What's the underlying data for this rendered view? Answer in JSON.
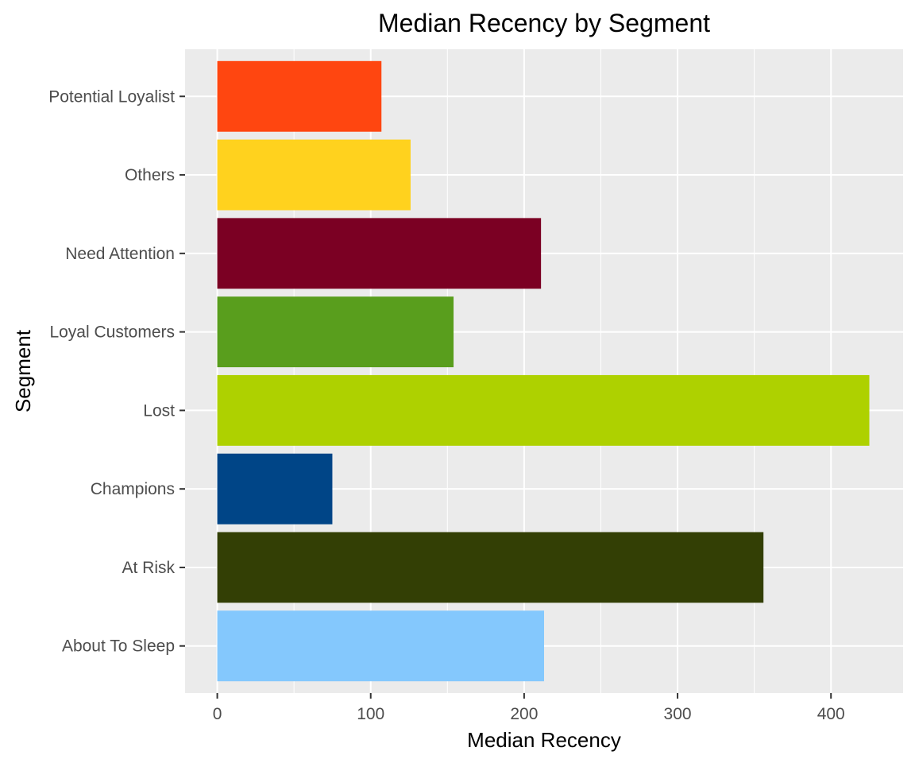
{
  "chart_data": {
    "type": "bar",
    "orientation": "horizontal",
    "title": "Median Recency by Segment",
    "xlabel": "Median Recency",
    "ylabel": "Segment",
    "xlim": [
      -21,
      447
    ],
    "x_ticks": [
      0,
      100,
      200,
      300,
      400
    ],
    "grid": true,
    "legend": "none",
    "categories": [
      "About To Sleep",
      "At Risk",
      "Champions",
      "Lost",
      "Loyal Customers",
      "Need Attention",
      "Others",
      "Potential Loyalist"
    ],
    "values": [
      213,
      356,
      75,
      425,
      154,
      211,
      126,
      107
    ],
    "colors": [
      "#84C8FD",
      "#333F05",
      "#004587",
      "#AED100",
      "#599E1D",
      "#7B0023",
      "#FFD21E",
      "#FF4610"
    ]
  },
  "theme": {
    "panel_bg": "#EBEBEB",
    "grid_major": "#FFFFFF",
    "tick_color": "#333333"
  }
}
